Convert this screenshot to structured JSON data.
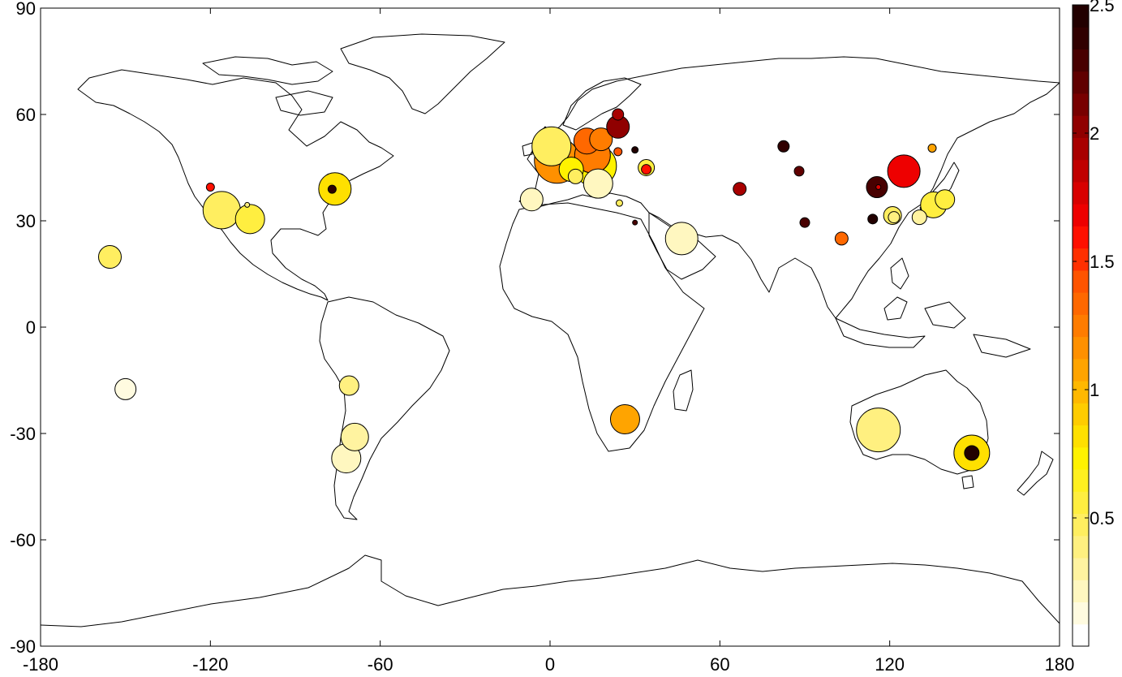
{
  "chart_data": {
    "type": "scatter",
    "subtype": "bubble-map",
    "title": "",
    "xlabel": "",
    "ylabel": "",
    "xlim": [
      -180,
      180
    ],
    "ylim": [
      -90,
      90
    ],
    "xticks": [
      -180,
      -120,
      -60,
      0,
      60,
      120,
      180
    ],
    "yticks": [
      -90,
      -60,
      -30,
      0,
      30,
      60,
      90
    ],
    "xtick_labels": [
      "-180",
      "-120",
      "-60",
      "0",
      "60",
      "120",
      "180"
    ],
    "ytick_labels": [
      "-90",
      "-60",
      "-30",
      "0",
      "30",
      "60",
      "90"
    ],
    "grid": false,
    "colorbar": {
      "min": 0,
      "max": 2.5,
      "ticks": [
        0.5,
        1,
        1.5,
        2,
        2.5
      ],
      "tick_labels": [
        "0.5",
        "1",
        "1.5",
        "2",
        "2.5"
      ],
      "colormap": "hot-reversed",
      "colors": [
        "#ffffff",
        "#fffbe0",
        "#fff7c0",
        "#fff3a0",
        "#fff080",
        "#ffee60",
        "#ffee40",
        "#fff020",
        "#fff200",
        "#ffe000",
        "#ffcc00",
        "#ffb800",
        "#ffa400",
        "#ff9000",
        "#ff7c00",
        "#ff6800",
        "#ff5400",
        "#ff3000",
        "#ff1000",
        "#ee0000",
        "#d80000",
        "#c00000",
        "#a80000",
        "#900000",
        "#780000",
        "#600000",
        "#480000",
        "#300000",
        "#220000"
      ]
    },
    "points": [
      {
        "lon": -155.5,
        "lat": 19.8,
        "size": 14,
        "value": 0.45
      },
      {
        "lon": -150.0,
        "lat": -17.5,
        "size": 13,
        "value": 0.15
      },
      {
        "lon": -120.0,
        "lat": 39.5,
        "size": 5,
        "value": 1.6
      },
      {
        "lon": -116.0,
        "lat": 33.0,
        "size": 23,
        "value": 0.5
      },
      {
        "lon": -106.0,
        "lat": 30.5,
        "size": 18,
        "value": 0.55
      },
      {
        "lon": -107.0,
        "lat": 34.5,
        "size": 3,
        "value": 0.4
      },
      {
        "lon": -76.0,
        "lat": 39.0,
        "size": 20,
        "value": 0.85
      },
      {
        "lon": -77.0,
        "lat": 38.9,
        "size": 5,
        "value": 2.4
      },
      {
        "lon": -71.0,
        "lat": -16.5,
        "size": 12,
        "value": 0.4
      },
      {
        "lon": -69.0,
        "lat": -31.0,
        "size": 17,
        "value": 0.3
      },
      {
        "lon": -72.0,
        "lat": -37.0,
        "size": 18,
        "value": 0.25
      },
      {
        "lon": -6.5,
        "lat": 36.0,
        "size": 14,
        "value": 0.2
      },
      {
        "lon": 0.5,
        "lat": 51.0,
        "size": 24,
        "value": 0.45
      },
      {
        "lon": 2.5,
        "lat": 47.0,
        "size": 28,
        "value": 1.2
      },
      {
        "lon": 7.5,
        "lat": 44.5,
        "size": 15,
        "value": 0.7
      },
      {
        "lon": 9.0,
        "lat": 42.5,
        "size": 9,
        "value": 0.5
      },
      {
        "lon": 13.0,
        "lat": 52.5,
        "size": 16,
        "value": 1.3
      },
      {
        "lon": 15.0,
        "lat": 48.5,
        "size": 22,
        "value": 1.25
      },
      {
        "lon": 16.0,
        "lat": 45.5,
        "size": 26,
        "value": 0.7
      },
      {
        "lon": 18.0,
        "lat": 53.0,
        "size": 14,
        "value": 1.25
      },
      {
        "lon": 17.0,
        "lat": 40.5,
        "size": 18,
        "value": 0.2
      },
      {
        "lon": 24.0,
        "lat": 60.0,
        "size": 7,
        "value": 1.9
      },
      {
        "lon": 24.0,
        "lat": 56.5,
        "size": 14,
        "value": 2.0
      },
      {
        "lon": 24.0,
        "lat": 49.5,
        "size": 5,
        "value": 1.4
      },
      {
        "lon": 24.5,
        "lat": 35.0,
        "size": 4,
        "value": 0.5
      },
      {
        "lon": 30.0,
        "lat": 50.0,
        "size": 4,
        "value": 2.5
      },
      {
        "lon": 30.0,
        "lat": 29.5,
        "size": 3,
        "value": 2.3
      },
      {
        "lon": 34.0,
        "lat": 45.0,
        "size": 10,
        "value": 0.6
      },
      {
        "lon": 34.0,
        "lat": 44.5,
        "size": 6,
        "value": 1.6
      },
      {
        "lon": 46.5,
        "lat": 25.0,
        "size": 20,
        "value": 0.25
      },
      {
        "lon": 67.0,
        "lat": 39.0,
        "size": 8,
        "value": 1.9
      },
      {
        "lon": 82.5,
        "lat": 51.0,
        "size": 7,
        "value": 2.4
      },
      {
        "lon": 88.0,
        "lat": 44.0,
        "size": 6,
        "value": 2.2
      },
      {
        "lon": 90.0,
        "lat": 29.5,
        "size": 6,
        "value": 2.3
      },
      {
        "lon": 103.0,
        "lat": 25.0,
        "size": 8,
        "value": 1.3
      },
      {
        "lon": 114.0,
        "lat": 30.5,
        "size": 6,
        "value": 2.5
      },
      {
        "lon": 115.5,
        "lat": 39.5,
        "size": 13,
        "value": 2.3
      },
      {
        "lon": 116.0,
        "lat": 39.5,
        "size": 3,
        "value": 1.8
      },
      {
        "lon": 121.0,
        "lat": 31.5,
        "size": 11,
        "value": 0.5
      },
      {
        "lon": 121.5,
        "lat": 31.0,
        "size": 7,
        "value": 0.35
      },
      {
        "lon": 125.0,
        "lat": 44.0,
        "size": 20,
        "value": 1.65
      },
      {
        "lon": 135.0,
        "lat": 50.5,
        "size": 5,
        "value": 1.1
      },
      {
        "lon": 130.5,
        "lat": 31.0,
        "size": 9,
        "value": 0.3
      },
      {
        "lon": 135.5,
        "lat": 34.5,
        "size": 16,
        "value": 0.6
      },
      {
        "lon": 139.5,
        "lat": 36.0,
        "size": 12,
        "value": 0.55
      },
      {
        "lon": 116.0,
        "lat": -29.0,
        "size": 27,
        "value": 0.4
      },
      {
        "lon": 149.0,
        "lat": -35.5,
        "size": 22,
        "value": 0.85
      },
      {
        "lon": 149.0,
        "lat": -35.5,
        "size": 9,
        "value": 2.5
      },
      {
        "lon": 26.5,
        "lat": -26.0,
        "size": 18,
        "value": 1.1
      }
    ]
  }
}
